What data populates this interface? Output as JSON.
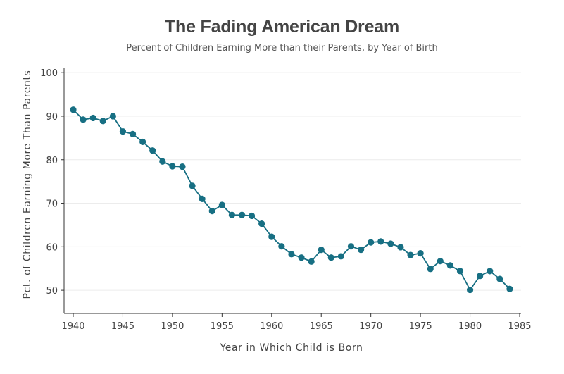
{
  "colors": {
    "series": "#176f83",
    "grid": "#ececec",
    "axis": "#333333",
    "title": "#444444"
  },
  "chart_data": {
    "type": "line",
    "title": "The Fading American Dream",
    "subtitle": "Percent of Children Earning More than their Parents, by Year of Birth",
    "xlabel": "Year in Which Child is Born",
    "ylabel": "Pct. of Children Earning More Than Parents",
    "xlim": [
      1940,
      1985
    ],
    "ylim": [
      45,
      101
    ],
    "xticks": [
      1940,
      1945,
      1950,
      1955,
      1960,
      1965,
      1970,
      1975,
      1980,
      1985
    ],
    "yticks": [
      50,
      60,
      70,
      80,
      90,
      100
    ],
    "grid": "horizontal",
    "series": [
      {
        "x": [
          1940,
          1941,
          1942,
          1943,
          1944,
          1945,
          1946,
          1947,
          1948,
          1949,
          1950,
          1951,
          1952,
          1953,
          1954,
          1955,
          1956,
          1957,
          1958,
          1959,
          1960,
          1961,
          1962,
          1963,
          1964,
          1965,
          1966,
          1967,
          1968,
          1969,
          1970,
          1971,
          1972,
          1973,
          1974,
          1975,
          1976,
          1977,
          1978,
          1979,
          1980,
          1981,
          1982,
          1983,
          1984
        ],
        "values": [
          91.5,
          89.2,
          89.6,
          88.9,
          90.0,
          86.5,
          85.9,
          84.1,
          82.1,
          79.6,
          78.5,
          78.4,
          74.0,
          71.0,
          68.2,
          69.6,
          67.3,
          67.3,
          67.1,
          65.3,
          62.3,
          60.1,
          58.3,
          57.5,
          56.6,
          59.3,
          57.5,
          57.8,
          60.1,
          59.3,
          61.0,
          61.2,
          60.7,
          59.9,
          58.1,
          58.5,
          54.9,
          56.7,
          55.7,
          54.4,
          50.1,
          53.3,
          54.4,
          52.6,
          50.3
        ]
      }
    ]
  }
}
